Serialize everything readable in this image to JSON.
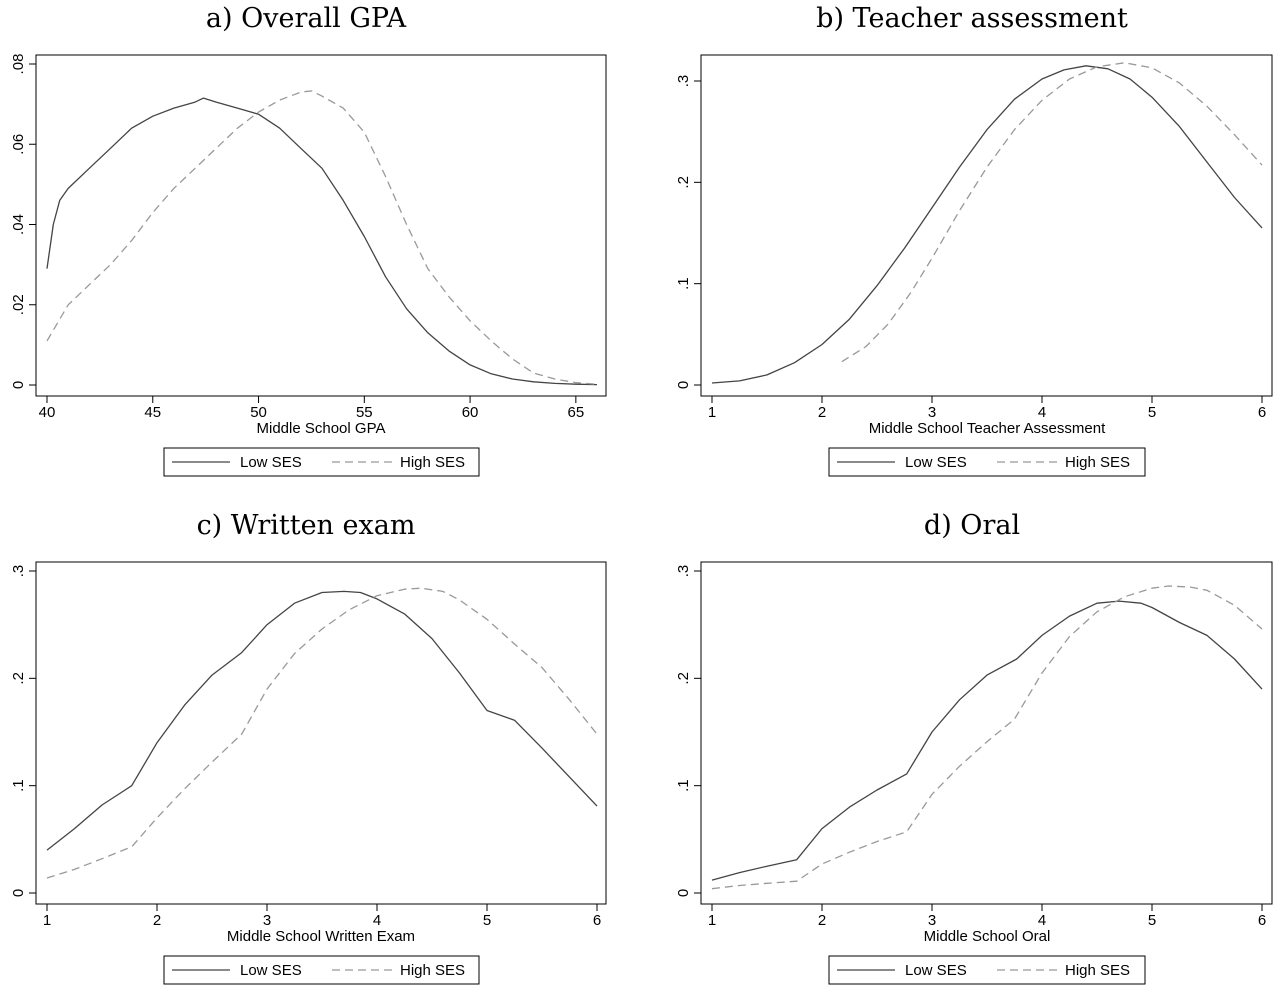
{
  "chart_data": [
    {
      "type": "line",
      "title": "a) Overall GPA",
      "xlabel": "Middle School GPA",
      "ylabel": "",
      "xlim": [
        40,
        66
      ],
      "ylim": [
        0,
        0.08
      ],
      "xticks": [
        40,
        45,
        50,
        55,
        60,
        65
      ],
      "xtick_labels": [
        "40",
        "45",
        "50",
        "55",
        "60",
        "65"
      ],
      "yticks": [
        0,
        0.02,
        0.04,
        0.06,
        0.08
      ],
      "ytick_labels": [
        "0",
        ".02",
        ".04",
        ".06",
        ".08"
      ],
      "legend": {
        "placement": "bottom",
        "items": [
          "Low SES",
          "High SES"
        ]
      },
      "series": [
        {
          "name": "Low SES",
          "color": "#444444",
          "dash": "solid",
          "x": [
            40,
            40.3,
            40.6,
            41,
            42,
            43,
            44,
            45,
            46,
            47,
            47.4,
            48,
            49,
            50,
            51,
            52,
            53,
            54,
            55,
            56,
            57,
            58,
            59,
            60,
            61,
            62,
            63,
            64,
            65,
            66
          ],
          "y": [
            0.029,
            0.04,
            0.046,
            0.049,
            0.054,
            0.059,
            0.064,
            0.067,
            0.069,
            0.0705,
            0.0715,
            0.0705,
            0.069,
            0.0675,
            0.064,
            0.059,
            0.054,
            0.046,
            0.037,
            0.027,
            0.019,
            0.013,
            0.0085,
            0.005,
            0.0028,
            0.0015,
            0.0008,
            0.0004,
            0.0002,
            0.0001
          ]
        },
        {
          "name": "High SES",
          "color": "#999999",
          "dash": "dashed",
          "x": [
            40,
            41,
            42,
            43,
            44,
            45,
            46,
            47,
            48,
            49,
            50,
            51,
            52,
            52.5,
            53,
            54,
            55,
            56,
            57,
            58,
            59,
            60,
            61,
            62,
            63,
            64,
            65,
            66
          ],
          "y": [
            0.011,
            0.02,
            0.025,
            0.03,
            0.036,
            0.043,
            0.049,
            0.054,
            0.059,
            0.064,
            0.068,
            0.071,
            0.073,
            0.0733,
            0.072,
            0.069,
            0.063,
            0.052,
            0.04,
            0.029,
            0.022,
            0.016,
            0.011,
            0.0065,
            0.003,
            0.0015,
            0.0006,
            0.0002
          ]
        }
      ]
    },
    {
      "type": "line",
      "title": "b) Teacher assessment",
      "xlabel": "Middle School Teacher Assessment",
      "ylabel": "",
      "xlim": [
        1,
        6
      ],
      "ylim": [
        0,
        0.3
      ],
      "xticks": [
        1,
        2,
        3,
        4,
        5,
        6
      ],
      "xtick_labels": [
        "1",
        "2",
        "3",
        "4",
        "5",
        "6"
      ],
      "yticks": [
        0,
        0.1,
        0.2,
        0.3
      ],
      "ytick_labels": [
        "0",
        ".1",
        ".2",
        ".3"
      ],
      "legend": {
        "placement": "bottom",
        "items": [
          "Low SES",
          "High SES"
        ]
      },
      "series": [
        {
          "name": "Low SES",
          "color": "#444444",
          "dash": "solid",
          "x": [
            1,
            1.25,
            1.5,
            1.75,
            2,
            2.25,
            2.5,
            2.75,
            3,
            3.25,
            3.5,
            3.75,
            4,
            4.2,
            4.4,
            4.6,
            4.8,
            5,
            5.25,
            5.5,
            5.75,
            6
          ],
          "y": [
            0.002,
            0.004,
            0.01,
            0.022,
            0.04,
            0.065,
            0.098,
            0.135,
            0.175,
            0.215,
            0.252,
            0.282,
            0.302,
            0.311,
            0.315,
            0.312,
            0.302,
            0.284,
            0.255,
            0.22,
            0.185,
            0.155
          ]
        },
        {
          "name": "High SES",
          "color": "#999999",
          "dash": "dashed",
          "x": [
            2.18,
            2.4,
            2.6,
            2.8,
            3,
            3.25,
            3.5,
            3.75,
            4,
            4.25,
            4.5,
            4.75,
            5,
            5.25,
            5.5,
            5.75,
            6
          ],
          "y": [
            0.023,
            0.038,
            0.06,
            0.09,
            0.125,
            0.172,
            0.215,
            0.252,
            0.281,
            0.302,
            0.314,
            0.318,
            0.313,
            0.298,
            0.275,
            0.247,
            0.217
          ]
        }
      ]
    },
    {
      "type": "line",
      "title": "c) Written exam",
      "xlabel": "Middle School Written Exam",
      "ylabel": "",
      "xlim": [
        1,
        6
      ],
      "ylim": [
        0,
        0.3
      ],
      "xticks": [
        1,
        2,
        3,
        4,
        5,
        6
      ],
      "xtick_labels": [
        "1",
        "2",
        "3",
        "4",
        "5",
        "6"
      ],
      "yticks": [
        0,
        0.1,
        0.2,
        0.3
      ],
      "ytick_labels": [
        "0",
        ".1",
        ".2",
        ".3"
      ],
      "legend": {
        "placement": "bottom",
        "items": [
          "Low SES",
          "High SES"
        ]
      },
      "series": [
        {
          "name": "Low SES",
          "color": "#444444",
          "dash": "solid",
          "x": [
            1,
            1.25,
            1.5,
            1.77,
            2,
            2.25,
            2.5,
            2.77,
            3,
            3.25,
            3.5,
            3.7,
            3.85,
            4,
            4.25,
            4.5,
            4.75,
            5,
            5.25,
            5.5,
            5.75,
            6
          ],
          "y": [
            0.04,
            0.06,
            0.082,
            0.1,
            0.14,
            0.175,
            0.203,
            0.224,
            0.25,
            0.27,
            0.28,
            0.281,
            0.28,
            0.274,
            0.26,
            0.237,
            0.205,
            0.17,
            0.161,
            0.135,
            0.108,
            0.081
          ]
        },
        {
          "name": "High SES",
          "color": "#999999",
          "dash": "dashed",
          "x": [
            1,
            1.25,
            1.5,
            1.77,
            2,
            2.25,
            2.5,
            2.77,
            3,
            3.25,
            3.5,
            3.75,
            4,
            4.25,
            4.4,
            4.6,
            4.75,
            5,
            5.25,
            5.5,
            5.75,
            6
          ],
          "y": [
            0.014,
            0.022,
            0.032,
            0.043,
            0.07,
            0.097,
            0.122,
            0.148,
            0.19,
            0.223,
            0.246,
            0.264,
            0.277,
            0.283,
            0.284,
            0.281,
            0.273,
            0.255,
            0.232,
            0.21,
            0.18,
            0.148
          ]
        }
      ]
    },
    {
      "type": "line",
      "title": "d) Oral",
      "xlabel": "Middle School Oral",
      "ylabel": "",
      "xlim": [
        1,
        6
      ],
      "ylim": [
        0,
        0.3
      ],
      "xticks": [
        1,
        2,
        3,
        4,
        5,
        6
      ],
      "xtick_labels": [
        "1",
        "2",
        "3",
        "4",
        "5",
        "6"
      ],
      "yticks": [
        0,
        0.1,
        0.2,
        0.3
      ],
      "ytick_labels": [
        "0",
        ".1",
        ".2",
        ".3"
      ],
      "legend": {
        "placement": "bottom",
        "items": [
          "Low SES",
          "High SES"
        ]
      },
      "series": [
        {
          "name": "Low SES",
          "color": "#444444",
          "dash": "solid",
          "x": [
            1,
            1.25,
            1.5,
            1.77,
            2,
            2.25,
            2.5,
            2.77,
            3,
            3.25,
            3.5,
            3.77,
            4,
            4.25,
            4.5,
            4.7,
            4.9,
            5,
            5.25,
            5.5,
            5.75,
            6
          ],
          "y": [
            0.012,
            0.019,
            0.025,
            0.031,
            0.06,
            0.08,
            0.096,
            0.111,
            0.15,
            0.18,
            0.203,
            0.218,
            0.24,
            0.258,
            0.27,
            0.272,
            0.27,
            0.266,
            0.252,
            0.24,
            0.218,
            0.19
          ]
        },
        {
          "name": "High SES",
          "color": "#999999",
          "dash": "dashed",
          "x": [
            1,
            1.25,
            1.5,
            1.77,
            2,
            2.25,
            2.5,
            2.77,
            3,
            3.25,
            3.5,
            3.75,
            4,
            4.25,
            4.5,
            4.75,
            5,
            5.15,
            5.35,
            5.5,
            5.75,
            6
          ],
          "y": [
            0.004,
            0.007,
            0.009,
            0.011,
            0.027,
            0.038,
            0.048,
            0.057,
            0.092,
            0.118,
            0.141,
            0.162,
            0.205,
            0.239,
            0.262,
            0.276,
            0.284,
            0.286,
            0.285,
            0.282,
            0.268,
            0.246
          ]
        }
      ]
    }
  ]
}
